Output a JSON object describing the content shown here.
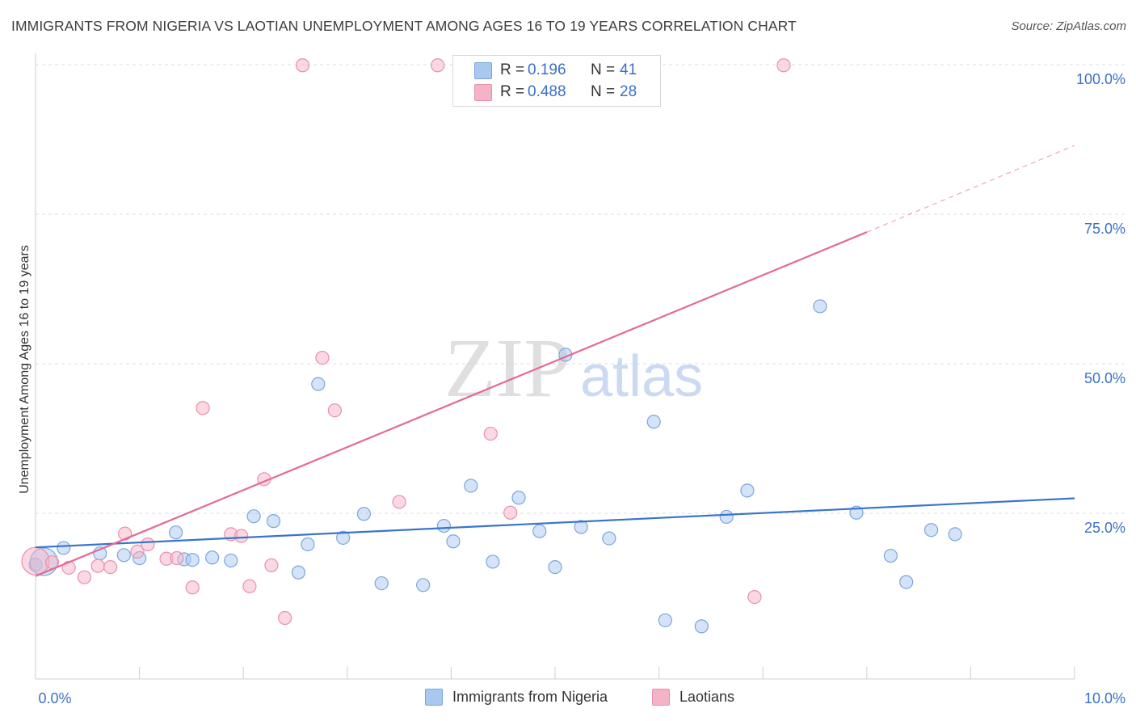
{
  "header": {
    "title": "IMMIGRANTS FROM NIGERIA VS LAOTIAN UNEMPLOYMENT AMONG AGES 16 TO 19 YEARS CORRELATION CHART",
    "source": "Source: ZipAtlas.com"
  },
  "legend": {
    "rows": [
      {
        "r_label": "R =",
        "r_value": "0.196",
        "n_label": "N =",
        "n_value": "41",
        "color": "#a9c8ef"
      },
      {
        "r_label": "R =",
        "r_value": "0.488",
        "n_label": "N =",
        "n_value": "28",
        "color": "#f5b3c7"
      }
    ]
  },
  "bottom_legend": {
    "items": [
      {
        "label": "Immigrants from Nigeria",
        "color": "#a9c8ef"
      },
      {
        "label": "Laotians",
        "color": "#f5b3c7"
      }
    ]
  },
  "watermark": {
    "zip": "ZIP",
    "atlas": "atlas"
  },
  "chart_data": {
    "type": "scatter",
    "title": "IMMIGRANTS FROM NIGERIA VS LAOTIAN UNEMPLOYMENT AMONG AGES 16 TO 19 YEARS CORRELATION CHART",
    "xlabel": "",
    "ylabel": "Unemployment Among Ages 16 to 19 years",
    "xlim": [
      0,
      10
    ],
    "ylim": [
      0,
      100
    ],
    "x_tick_labels": [
      "0.0%",
      "10.0%"
    ],
    "y_tick_labels": [
      "100.0%",
      "75.0%",
      "50.0%",
      "25.0%"
    ],
    "y_ticks": [
      100,
      75,
      50,
      25
    ],
    "grid": true,
    "series": [
      {
        "name": "Immigrants from Nigeria",
        "color": "#a9c8ef",
        "stroke": "#7aa6dd",
        "trend": {
          "x0": 0,
          "y0": 19.3,
          "x1": 10,
          "y1": 27.5,
          "color": "#3a74cc"
        },
        "points": [
          [
            0.27,
            19.2
          ],
          [
            0.0,
            16.4
          ],
          [
            0.62,
            18.3
          ],
          [
            0.85,
            18.0
          ],
          [
            1.0,
            17.5
          ],
          [
            1.35,
            21.8
          ],
          [
            1.43,
            17.3
          ],
          [
            1.51,
            17.2
          ],
          [
            1.7,
            17.6
          ],
          [
            1.88,
            17.1
          ],
          [
            2.1,
            24.5
          ],
          [
            2.29,
            23.7
          ],
          [
            2.53,
            15.1
          ],
          [
            2.72,
            46.6
          ],
          [
            2.62,
            19.8
          ],
          [
            2.96,
            20.9
          ],
          [
            3.16,
            24.9
          ],
          [
            3.33,
            13.3
          ],
          [
            3.73,
            13.0
          ],
          [
            3.93,
            22.9
          ],
          [
            4.02,
            20.3
          ],
          [
            4.19,
            29.6
          ],
          [
            4.4,
            16.9
          ],
          [
            4.65,
            27.6
          ],
          [
            4.85,
            22.0
          ],
          [
            5.0,
            16.0
          ],
          [
            5.1,
            51.5
          ],
          [
            5.25,
            22.7
          ],
          [
            5.52,
            20.8
          ],
          [
            5.95,
            40.3
          ],
          [
            6.06,
            7.1
          ],
          [
            6.41,
            6.1
          ],
          [
            6.65,
            24.4
          ],
          [
            6.85,
            28.8
          ],
          [
            7.55,
            59.6
          ],
          [
            7.9,
            25.1
          ],
          [
            8.23,
            17.9
          ],
          [
            8.38,
            13.5
          ],
          [
            8.62,
            22.2
          ],
          [
            8.85,
            21.5
          ],
          [
            0.08,
            16.9
          ]
        ]
      },
      {
        "name": "Laotians",
        "color": "#f5b3c7",
        "stroke": "#eb8fab",
        "trend": {
          "x0": 0,
          "y0": 14.5,
          "x1": 8.0,
          "y1": 72.0,
          "color": "#e46a94",
          "dashed_x1": 10,
          "dashed_y1": 86.5
        },
        "points": [
          [
            0.0,
            17.0
          ],
          [
            0.16,
            16.8
          ],
          [
            0.32,
            15.9
          ],
          [
            0.47,
            14.3
          ],
          [
            0.6,
            16.2
          ],
          [
            0.72,
            16.0
          ],
          [
            0.86,
            21.6
          ],
          [
            0.98,
            18.6
          ],
          [
            1.08,
            19.8
          ],
          [
            1.26,
            17.4
          ],
          [
            1.36,
            17.5
          ],
          [
            1.51,
            12.6
          ],
          [
            1.61,
            42.6
          ],
          [
            1.88,
            21.5
          ],
          [
            1.98,
            21.2
          ],
          [
            2.06,
            12.8
          ],
          [
            2.2,
            30.7
          ],
          [
            2.27,
            16.3
          ],
          [
            2.4,
            7.5
          ],
          [
            2.57,
            99.9
          ],
          [
            2.76,
            51.0
          ],
          [
            2.88,
            42.2
          ],
          [
            3.5,
            26.9
          ],
          [
            3.87,
            99.9
          ],
          [
            4.38,
            38.3
          ],
          [
            4.57,
            25.1
          ],
          [
            6.92,
            11.0
          ],
          [
            7.2,
            99.9
          ]
        ]
      }
    ]
  }
}
